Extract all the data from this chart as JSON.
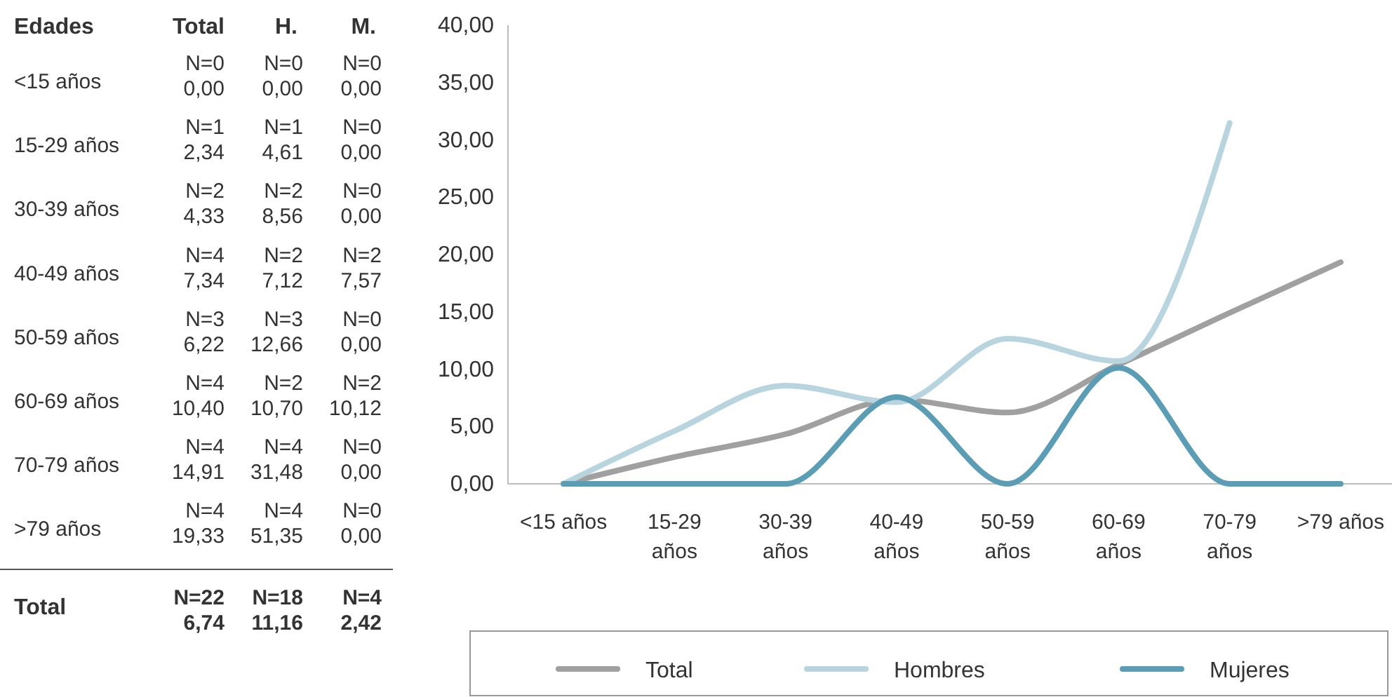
{
  "chart_data": [
    {
      "type": "other",
      "categories": [
        "<15 años",
        "15-29 años",
        "30-39 años",
        "40-49 años",
        "50-59 años",
        "60-69 años",
        "70-79 años",
        ">79 años"
      ],
      "annotations": [
        "Edades",
        "Total",
        "H.",
        "M.",
        "N=0\n0,00",
        "N=0\n0,00",
        "N=0\n0,00",
        "N=1\n2,34",
        "N=1\n4,61",
        "N=0\n0,00",
        "N=2\n4,33",
        "N=2\n8,56",
        "N=0\n0,00",
        "N=4\n7,34",
        "N=2\n7,12",
        "N=2\n7,57",
        "N=3\n6,22",
        "N=3\n12,66",
        "N=0\n0,00",
        "N=4\n10,40",
        "N=2\n10,70",
        "N=2\n10,12",
        "N=4\n14,91",
        "N=4\n31,48",
        "N=0\n0,00",
        "N=4\n19,33",
        "N=4\n51,35",
        "N=0\n0,00",
        "Total",
        "N=22\n6,74",
        "N=18\n11,16",
        "N=4\n2,42"
      ]
    },
    {
      "type": "line",
      "categories": [
        "<15 años",
        "15-29 años",
        "30-39 años",
        "40-49 años",
        "50-59 años",
        "60-69 años",
        "70-79 años",
        ">79 años"
      ],
      "series": [
        {
          "name": "Total",
          "color": "#a0a0a0",
          "values": [
            0,
            2.34,
            4.33,
            7.34,
            6.22,
            10.4,
            14.91,
            19.33
          ]
        },
        {
          "name": "Hombres",
          "color": "#b8d4df",
          "values": [
            0,
            4.61,
            8.56,
            7.12,
            12.66,
            10.7,
            31.48,
            null
          ]
        },
        {
          "name": "Mujeres",
          "color": "#5a9db5",
          "values": [
            0,
            0,
            0,
            7.57,
            0,
            10.12,
            0,
            0
          ]
        }
      ],
      "ylim": [
        0,
        40
      ],
      "yticks": [
        {
          "value": 0,
          "label": "0,00"
        },
        {
          "value": 5,
          "label": "5,00"
        },
        {
          "value": 10,
          "label": "10,00"
        },
        {
          "value": 15,
          "label": "15,00"
        },
        {
          "value": 20,
          "label": "20,00"
        },
        {
          "value": 25,
          "label": "25,00"
        },
        {
          "value": 30,
          "label": "30,00"
        },
        {
          "value": 35,
          "label": "35,00"
        },
        {
          "value": 40,
          "label": "40,00"
        }
      ],
      "legend": "bottom",
      "marker": "none",
      "line_style": "solid",
      "grid": false
    }
  ]
}
